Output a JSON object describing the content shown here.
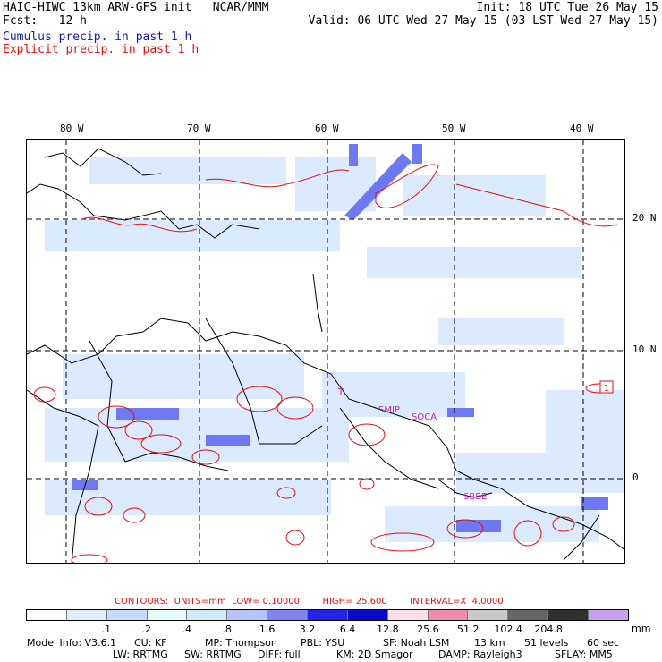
{
  "header": {
    "left1": "HAIC-HIWC 13km ARW-GFS init   NCAR/MMM",
    "left2": "Fcst:   12 h",
    "right1": "Init: 18 UTC Tue 26 May 15",
    "right2": "Valid: 06 UTC Wed 27 May 15 (03 LST Wed 27 May 15)",
    "legend_cumulus": "Cumulus precip. in past 1 h",
    "legend_explicit": "Explicit precip. in past 1 h"
  },
  "axes": {
    "lon_labels": [
      "80 W",
      "70 W",
      "60 W",
      "50 W",
      "40 W"
    ],
    "lat_labels": [
      "20 N",
      "10 N",
      "0"
    ]
  },
  "stations": [
    "SMJP",
    "SOCA",
    "SBBE",
    "T"
  ],
  "contour_marker": "1",
  "contours_line": {
    "title": "CONTOURS:",
    "units": "UNITS=mm",
    "low": "LOW= 0.10000",
    "high": "HIGH= 25.600",
    "interval": "INTERVAL=X  4.0000"
  },
  "colorbar": {
    "unit": "mm",
    "labels": [
      ".1",
      ".2",
      ".4",
      ".8",
      "1.6",
      "3.2",
      "6.4",
      "12.8",
      "25.6",
      "51.2",
      "102.4",
      "204.8"
    ],
    "colors": [
      "#ffffff",
      "#ddeeff",
      "#c2dcff",
      "#e6fbfb",
      "#cfeaf8",
      "#b8c4ff",
      "#7f86f0",
      "#2424e8",
      "#0808c8",
      "#ffe0ea",
      "#f08cb0",
      "#c8c8c8",
      "#666666",
      "#303030",
      "#c8a0f0"
    ]
  },
  "footer": {
    "row1": [
      "Model Info: V3.6.1",
      "CU: KF",
      "MP: Thompson",
      "PBL: YSU",
      "SF: Noah LSM",
      "13 km",
      "51 levels",
      "60 sec"
    ],
    "row2": [
      "LW: RRTMG",
      "SW: RRTMG",
      "DIFF: full",
      "KM: 2D Smagor",
      "DAMP: Rayleigh3",
      "SFLAY: MM5"
    ]
  }
}
